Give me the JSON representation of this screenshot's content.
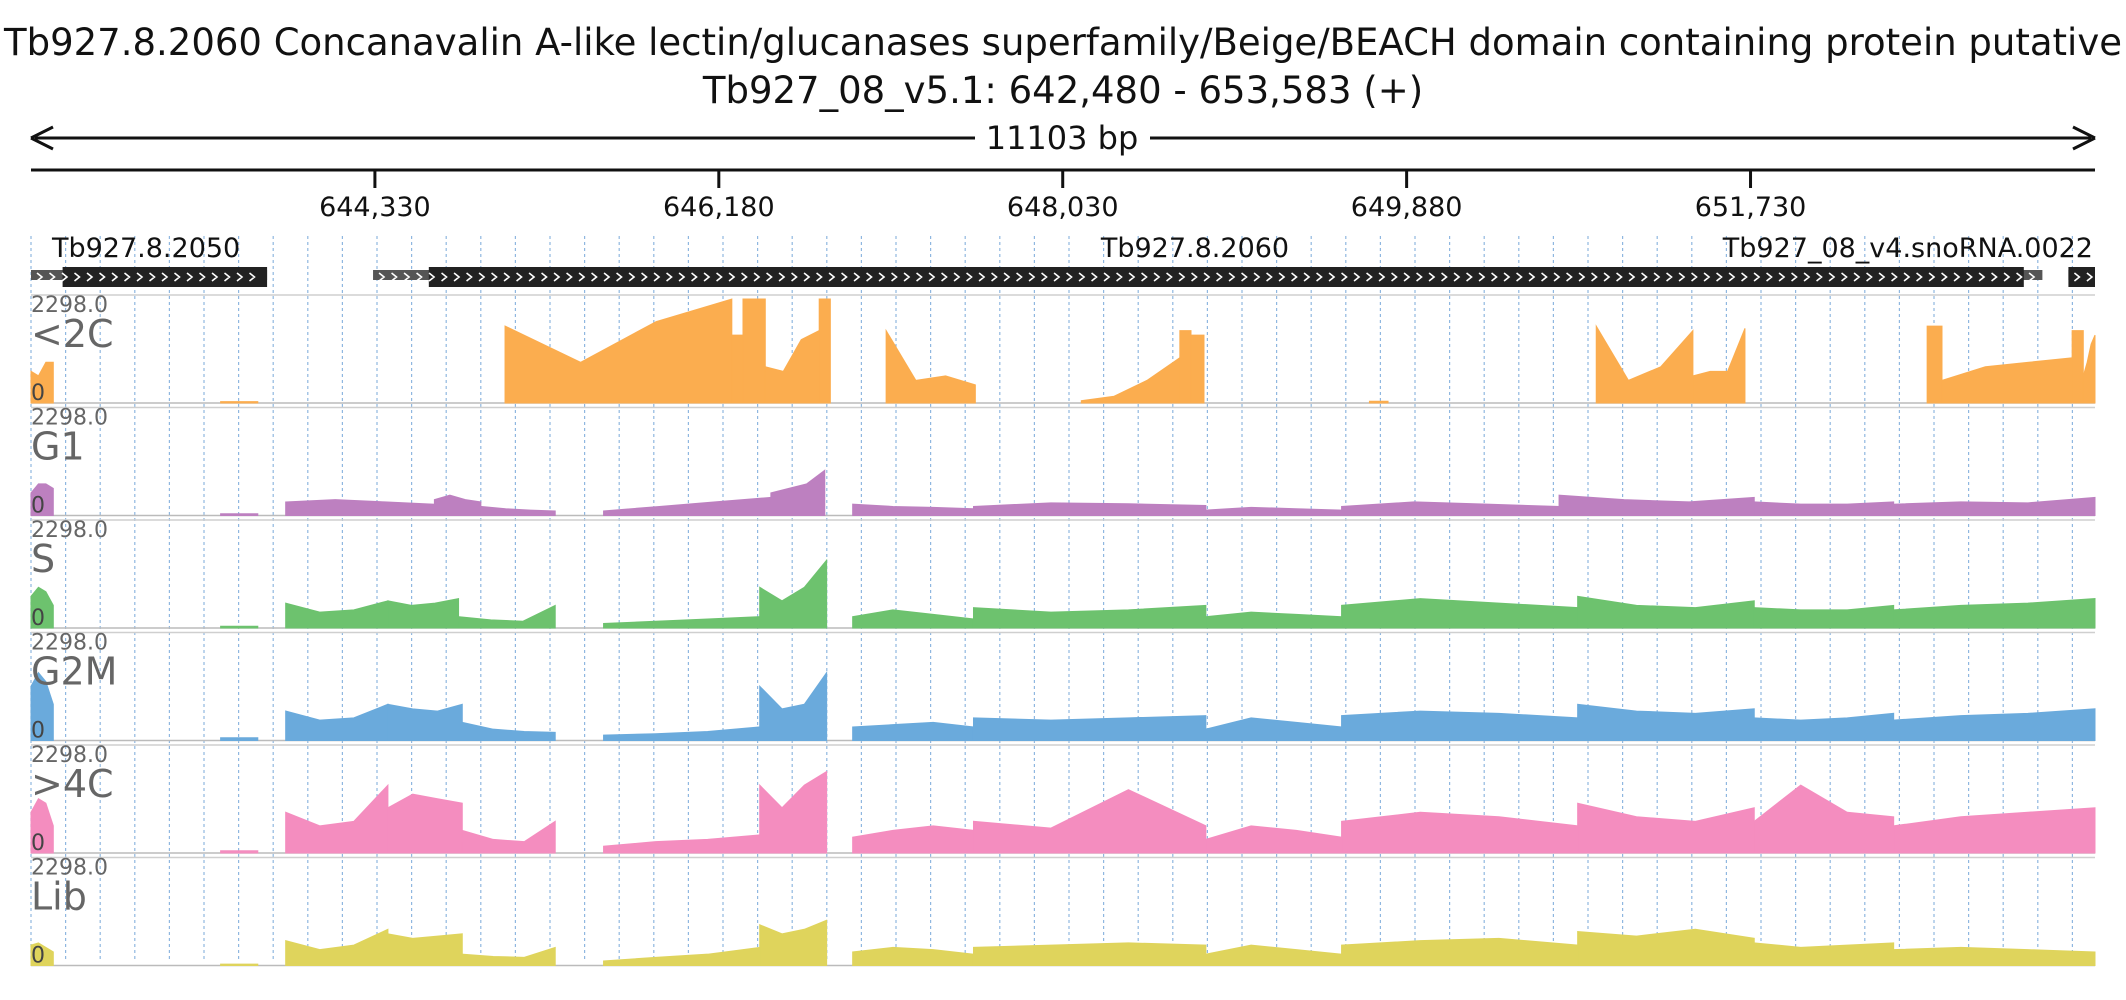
{
  "chart_data": {
    "type": "area",
    "title": "Tb927.8.2060  Concanavalin A-like lectin/glucanases superfamily/Beige/BEACH domain containing protein  putative",
    "subtitle": "Tb927_08_v5.1: 642,480 - 653,583 (+)",
    "span_label": "11103 bp",
    "xlim": [
      642480,
      653583
    ],
    "x_ticks": [
      644330,
      646180,
      648030,
      649880,
      651730
    ],
    "x_tick_labels": [
      "644,330",
      "646,180",
      "648,030",
      "649,880",
      "651,730"
    ],
    "grid": true,
    "genes": [
      {
        "name": "Tb927.8.2050",
        "start": 642480,
        "end": 643750,
        "cds_start": 642650,
        "cds_end": 643750,
        "strand": "+"
      },
      {
        "name": "Tb927.8.2060",
        "start": 644320,
        "end": 653300,
        "cds_start": 644620,
        "cds_end": 653200,
        "strand": "+"
      },
      {
        "name": "Tb927_08_v4.snoRNA.0022",
        "start": 653440,
        "end": 653583,
        "cds_start": 653440,
        "cds_end": 653583,
        "strand": "+"
      }
    ],
    "series": [
      {
        "name": "<2C",
        "color": "#fbad4f",
        "ymax": 2298.0,
        "segments": [
          [
            642480,
            642600,
            700,
            600,
            900,
            900
          ],
          [
            643500,
            643700,
            30,
            30,
            30,
            30
          ],
          [
            645030,
            646250,
            1700,
            900,
            1800,
            2298
          ],
          [
            646250,
            646310,
            1500,
            1500,
            1500,
            1500
          ],
          [
            646310,
            646430,
            2298,
            2298,
            2298,
            2298
          ],
          [
            646430,
            646720,
            800,
            700,
            1400,
            1600
          ],
          [
            646720,
            646780,
            2298,
            2298,
            2298,
            2298
          ],
          [
            647080,
            647560,
            1600,
            500,
            600,
            400
          ],
          [
            648130,
            648660,
            50,
            150,
            500,
            1000
          ],
          [
            648660,
            648720,
            1600,
            1600,
            1600,
            1600
          ],
          [
            648720,
            648790,
            1500,
            1500,
            1500,
            1500
          ],
          [
            649680,
            649780,
            40,
            40,
            40,
            40
          ],
          [
            652680,
            652760,
            1700,
            1700,
            1700,
            1700
          ],
          [
            652760,
            653460,
            500,
            800,
            900,
            1000
          ],
          [
            653460,
            653520,
            1600,
            1600,
            1600,
            1600
          ],
          [
            653520,
            653583,
            600,
            900,
            1300,
            1500
          ],
          [
            650900,
            651420,
            1700,
            500,
            800,
            1600
          ],
          [
            651420,
            651700,
            600,
            700,
            700,
            1650
          ]
        ]
      },
      {
        "name": "G1",
        "color": "#bd80c0",
        "ymax": 2298.0,
        "segments": [
          [
            642480,
            642600,
            500,
            700,
            700,
            600
          ],
          [
            643500,
            643700,
            40,
            40,
            40,
            40
          ],
          [
            643850,
            644650,
            300,
            350,
            300,
            250
          ],
          [
            644650,
            644900,
            350,
            450,
            350,
            300
          ],
          [
            644900,
            645300,
            200,
            150,
            120,
            100
          ],
          [
            645560,
            646460,
            100,
            200,
            300,
            400
          ],
          [
            646460,
            646750,
            500,
            600,
            700,
            1000
          ],
          [
            646900,
            647550,
            250,
            200,
            180,
            150
          ],
          [
            647550,
            648800,
            200,
            280,
            260,
            220
          ],
          [
            648800,
            649530,
            120,
            180,
            150,
            120
          ],
          [
            649530,
            650700,
            200,
            300,
            250,
            200
          ],
          [
            650700,
            651750,
            450,
            350,
            300,
            400
          ],
          [
            651750,
            652500,
            300,
            250,
            250,
            300
          ],
          [
            652500,
            653583,
            250,
            300,
            280,
            400
          ]
        ]
      },
      {
        "name": "S",
        "color": "#6dc26e",
        "ymax": 2298.0,
        "segments": [
          [
            642480,
            642600,
            700,
            900,
            800,
            500
          ],
          [
            643500,
            643700,
            40,
            40,
            40,
            40
          ],
          [
            643850,
            644400,
            550,
            350,
            400,
            600
          ],
          [
            644400,
            644780,
            600,
            500,
            550,
            650
          ],
          [
            644780,
            645300,
            250,
            180,
            150,
            500
          ],
          [
            645560,
            646400,
            100,
            150,
            200,
            250
          ],
          [
            646400,
            646760,
            900,
            600,
            900,
            1500
          ],
          [
            646900,
            647550,
            250,
            400,
            300,
            200
          ],
          [
            647550,
            648800,
            450,
            350,
            400,
            500
          ],
          [
            648800,
            649530,
            250,
            350,
            300,
            250
          ],
          [
            649530,
            650800,
            500,
            650,
            550,
            450
          ],
          [
            650800,
            651750,
            700,
            500,
            450,
            600
          ],
          [
            651750,
            652500,
            450,
            400,
            400,
            500
          ],
          [
            652500,
            653583,
            400,
            500,
            550,
            650
          ]
        ]
      },
      {
        "name": "G2M",
        "color": "#6aaadc",
        "ymax": 2298.0,
        "segments": [
          [
            642480,
            642600,
            1200,
            1500,
            1300,
            800
          ],
          [
            643500,
            643700,
            60,
            60,
            60,
            60
          ],
          [
            643850,
            644400,
            650,
            450,
            500,
            800
          ],
          [
            644400,
            644800,
            800,
            700,
            650,
            800
          ],
          [
            644800,
            645300,
            400,
            250,
            200,
            180
          ],
          [
            645560,
            646400,
            120,
            150,
            200,
            300
          ],
          [
            646400,
            646760,
            1200,
            700,
            800,
            1500
          ],
          [
            646900,
            647550,
            300,
            350,
            400,
            300
          ],
          [
            647550,
            648800,
            500,
            450,
            500,
            550
          ],
          [
            648800,
            649530,
            250,
            500,
            400,
            300
          ],
          [
            649530,
            650800,
            550,
            650,
            600,
            500
          ],
          [
            650800,
            651750,
            800,
            650,
            600,
            700
          ],
          [
            651750,
            652500,
            500,
            450,
            500,
            600
          ],
          [
            652500,
            653583,
            450,
            550,
            600,
            700
          ]
        ]
      },
      {
        "name": ">4C",
        "color": "#f48dbf",
        "ymax": 2298.0,
        "segments": [
          [
            642480,
            642600,
            900,
            1200,
            1100,
            600
          ],
          [
            643500,
            643700,
            50,
            50,
            50,
            50
          ],
          [
            643850,
            644400,
            900,
            600,
            700,
            1500
          ],
          [
            644400,
            644800,
            1000,
            1300,
            1200,
            1100
          ],
          [
            644800,
            645300,
            500,
            300,
            250,
            700
          ],
          [
            645560,
            646400,
            150,
            250,
            300,
            400
          ],
          [
            646400,
            646760,
            1500,
            1000,
            1500,
            1800
          ],
          [
            646900,
            647550,
            350,
            500,
            600,
            500
          ],
          [
            647550,
            648800,
            700,
            550,
            1400,
            600
          ],
          [
            648800,
            649530,
            300,
            600,
            500,
            350
          ],
          [
            649530,
            650800,
            700,
            900,
            800,
            600
          ],
          [
            650800,
            651750,
            1100,
            800,
            700,
            1000
          ],
          [
            651750,
            652500,
            700,
            1500,
            900,
            800
          ],
          [
            652500,
            653583,
            600,
            800,
            900,
            1000
          ]
        ]
      },
      {
        "name": "Lib",
        "color": "#dfd45c",
        "ymax": 2298.0,
        "segments": [
          [
            642480,
            642600,
            450,
            500,
            400,
            300
          ],
          [
            643500,
            643700,
            30,
            30,
            30,
            30
          ],
          [
            643850,
            644400,
            550,
            350,
            450,
            800
          ],
          [
            644400,
            644800,
            700,
            600,
            650,
            700
          ],
          [
            644800,
            645300,
            250,
            200,
            180,
            400
          ],
          [
            645560,
            646400,
            100,
            180,
            250,
            400
          ],
          [
            646400,
            646760,
            900,
            700,
            800,
            1000
          ],
          [
            646900,
            647550,
            300,
            400,
            350,
            250
          ],
          [
            647550,
            648800,
            400,
            450,
            500,
            450
          ],
          [
            648800,
            649530,
            250,
            450,
            350,
            250
          ],
          [
            649530,
            650800,
            450,
            550,
            600,
            450
          ],
          [
            650800,
            651750,
            750,
            650,
            800,
            600
          ],
          [
            651750,
            652500,
            500,
            400,
            450,
            500
          ],
          [
            652500,
            653583,
            350,
            400,
            350,
            300
          ]
        ]
      }
    ]
  }
}
